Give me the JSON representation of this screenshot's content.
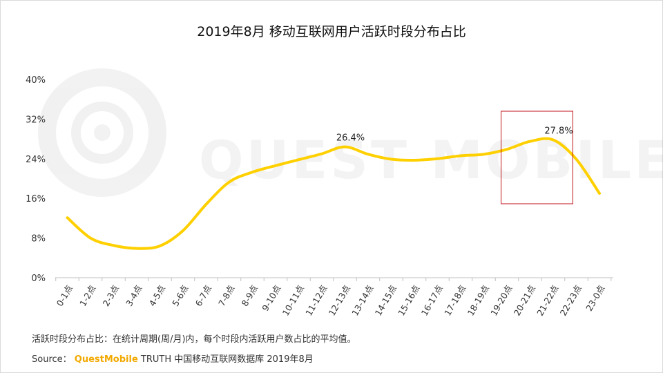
{
  "title": "2019年8月 移动互联网用户活跃时段分布占比",
  "watermark_text": "QUEST MOBILE",
  "footnote": "活跃时段分布占比：在统计周期(周/月)内，每个时段内活跃用户数占比的平均值。",
  "source": {
    "label": "Source：",
    "brand": "QuestMobile",
    "rest": "TRUTH 中国移动互联网数据库 2019年8月"
  },
  "colors": {
    "line": "#FFD000",
    "highlight_box": "#C0141C",
    "axis": "#BFBFBF",
    "text": "#222222"
  },
  "chart_data": {
    "type": "line",
    "title": "2019年8月 移动互联网用户活跃时段分布占比",
    "xlabel": "",
    "ylabel": "",
    "categories": [
      "0-1点",
      "1-2点",
      "2-3点",
      "3-4点",
      "4-5点",
      "5-6点",
      "6-7点",
      "7-8点",
      "8-9点",
      "9-10点",
      "10-11点",
      "11-12点",
      "12-13点",
      "13-14点",
      "14-15点",
      "15-16点",
      "16-17点",
      "17-18点",
      "18-19点",
      "19-20点",
      "20-21点",
      "21-22点",
      "22-23点",
      "23-0点"
    ],
    "series": [
      {
        "values": [
          12.1,
          8.0,
          6.5,
          5.9,
          6.4,
          9.5,
          14.8,
          19.3,
          21.3,
          22.6,
          23.8,
          25.0,
          26.4,
          24.9,
          23.9,
          23.7,
          24.0,
          24.6,
          24.9,
          25.9,
          27.5,
          27.8,
          23.9,
          17.0
        ]
      }
    ],
    "ylim": [
      0,
      40
    ],
    "yticks": [
      0,
      8,
      16,
      24,
      32,
      40
    ],
    "ytick_labels": [
      "0%",
      "8%",
      "16%",
      "24%",
      "32%",
      "40%"
    ],
    "data_labels": [
      {
        "index": 12,
        "text": "26.4%"
      },
      {
        "index": 21,
        "text": "27.8%"
      }
    ],
    "highlight_range": [
      "19-20点",
      "21-22点"
    ],
    "grid": false,
    "legend": "none"
  }
}
